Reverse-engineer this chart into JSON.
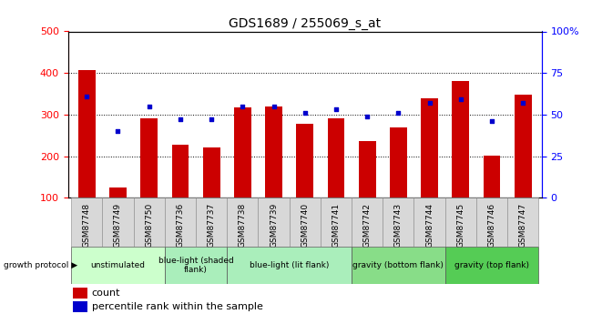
{
  "title": "GDS1689 / 255069_s_at",
  "samples": [
    "GSM87748",
    "GSM87749",
    "GSM87750",
    "GSM87736",
    "GSM87737",
    "GSM87738",
    "GSM87739",
    "GSM87740",
    "GSM87741",
    "GSM87742",
    "GSM87743",
    "GSM87744",
    "GSM87745",
    "GSM87746",
    "GSM87747"
  ],
  "counts": [
    408,
    124,
    290,
    228,
    222,
    318,
    320,
    278,
    292,
    237,
    269,
    340,
    380,
    202,
    348
  ],
  "percentiles": [
    61,
    40,
    55,
    47,
    47,
    55,
    55,
    51,
    53,
    49,
    51,
    57,
    59,
    46,
    57
  ],
  "bar_color": "#cc0000",
  "dot_color": "#0000cc",
  "ylim_left": [
    100,
    500
  ],
  "ylim_right": [
    0,
    100
  ],
  "yticks_left": [
    100,
    200,
    300,
    400,
    500
  ],
  "ytick_labels_left": [
    "100",
    "200",
    "300",
    "400",
    "500"
  ],
  "yticks_right": [
    0,
    25,
    50,
    75,
    100
  ],
  "ytick_labels_right": [
    "0",
    "25",
    "50",
    "75",
    "100%"
  ],
  "grid_color": "black",
  "grid_style": "dotted",
  "groups": [
    {
      "label": "unstimulated",
      "start": 0,
      "end": 3,
      "color": "#ccffcc"
    },
    {
      "label": "blue-light (shaded\nflank)",
      "start": 3,
      "end": 5,
      "color": "#aaeebb"
    },
    {
      "label": "blue-light (lit flank)",
      "start": 5,
      "end": 9,
      "color": "#aaeebb"
    },
    {
      "label": "gravity (bottom flank)",
      "start": 9,
      "end": 12,
      "color": "#88dd88"
    },
    {
      "label": "gravity (top flank)",
      "start": 12,
      "end": 15,
      "color": "#55cc55"
    }
  ],
  "group_header": "growth protocol",
  "legend_count_label": "count",
  "legend_pct_label": "percentile rank within the sample",
  "plot_bg": "#ffffff",
  "bar_width": 0.55,
  "tick_label_size": 6.5,
  "group_label_size": 6.5
}
